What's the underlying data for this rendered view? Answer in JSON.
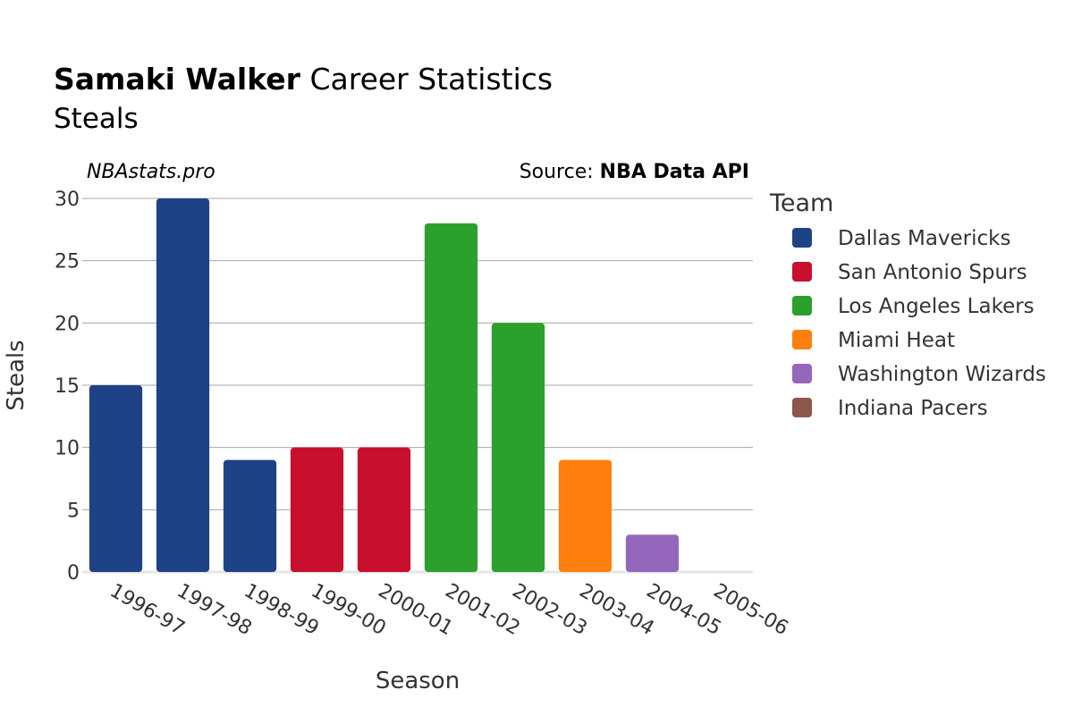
{
  "title": {
    "bold": "Samaki Walker",
    "rest": " Career Statistics"
  },
  "subtitle": "Steals",
  "watermark": "NBAstats.pro",
  "source": {
    "prefix": "Source: ",
    "name": "NBA Data API"
  },
  "chart_data": {
    "type": "bar",
    "xlabel": "Season",
    "ylabel": "Steals",
    "ylim": [
      0,
      30
    ],
    "yticks": [
      0,
      5,
      10,
      15,
      20,
      25,
      30
    ],
    "categories": [
      "1996-97",
      "1997-98",
      "1998-99",
      "1999-00",
      "2000-01",
      "2001-02",
      "2002-03",
      "2003-04",
      "2004-05",
      "2005-06"
    ],
    "values": [
      15,
      30,
      9,
      10,
      10,
      28,
      20,
      9,
      3,
      0
    ],
    "teams": [
      "Dallas Mavericks",
      "Dallas Mavericks",
      "Dallas Mavericks",
      "San Antonio Spurs",
      "San Antonio Spurs",
      "Los Angeles Lakers",
      "Los Angeles Lakers",
      "Miami Heat",
      "Washington Wizards",
      "Indiana Pacers"
    ],
    "legend": {
      "title": "Team",
      "position": "right",
      "items": [
        {
          "name": "Dallas Mavericks",
          "color": "#1f4287"
        },
        {
          "name": "San Antonio Spurs",
          "color": "#c8102e"
        },
        {
          "name": "Los Angeles Lakers",
          "color": "#2ca02c"
        },
        {
          "name": "Miami Heat",
          "color": "#ff7f0e"
        },
        {
          "name": "Washington Wizards",
          "color": "#9467bd"
        },
        {
          "name": "Indiana Pacers",
          "color": "#8c564b"
        }
      ]
    }
  }
}
